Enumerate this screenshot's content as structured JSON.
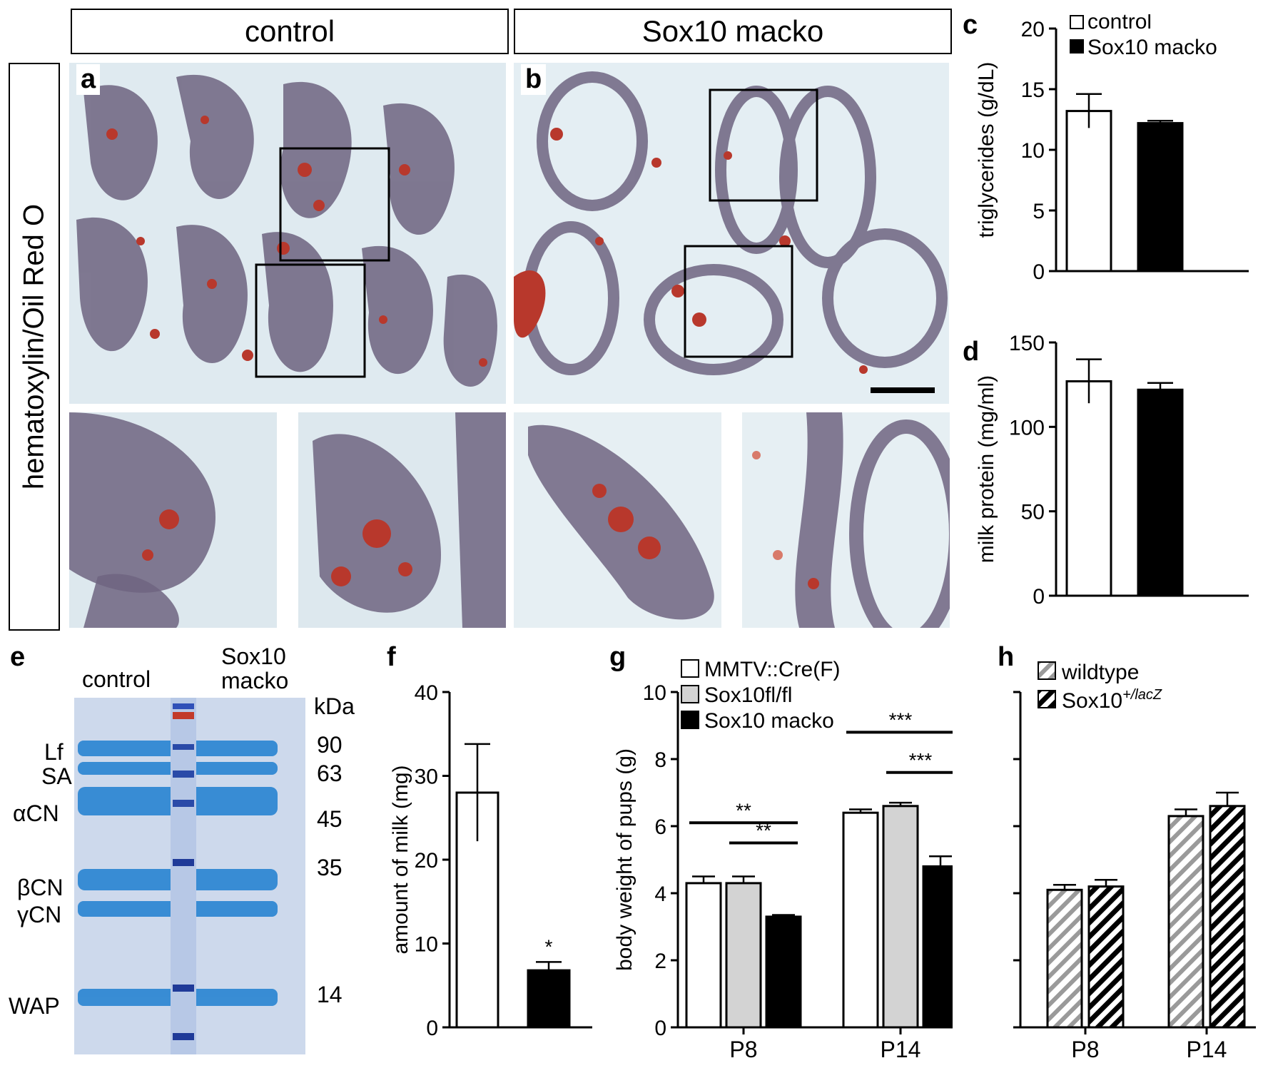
{
  "headers": {
    "control": "control",
    "macko": "Sox10 macko"
  },
  "side_label": "hematoxylin/Oil Red O",
  "panel_letters": {
    "a": "a",
    "b": "b",
    "c": "c",
    "d": "d",
    "e": "e",
    "f": "f",
    "g": "g",
    "h": "h"
  },
  "gel": {
    "control_label": "control",
    "macko_label_1": "Sox10",
    "macko_label_2": "macko",
    "kda_label": "kDa",
    "proteins": [
      "Lf",
      "SA",
      "αCN",
      "βCN",
      "γCN",
      "WAP"
    ],
    "markers": [
      "90",
      "63",
      "45",
      "35",
      "14"
    ]
  },
  "colors": {
    "control_fill": "#ffffff",
    "macko_fill": "#000000",
    "sox10flfl_fill": "#d3d3d3",
    "wildtype_hatch": "#9a9a9a",
    "lacz_hatch": "#000000",
    "tissue_purple": "#6e6480",
    "lipid_red": "#b8382c"
  },
  "chart_data": [
    {
      "panel": "c",
      "type": "bar",
      "categories": [
        "control",
        "Sox10 macko"
      ],
      "values": [
        13.2,
        12.2
      ],
      "errors": [
        1.4,
        0.2
      ],
      "fills": [
        "#ffffff",
        "#000000"
      ],
      "ylabel": "triglycerides (g/dL)",
      "ylim": [
        0,
        20
      ],
      "yticks": [
        0,
        5,
        10,
        15,
        20
      ],
      "legend": [
        "control",
        "Sox10 macko"
      ],
      "legend_position": "top-right"
    },
    {
      "panel": "d",
      "type": "bar",
      "categories": [
        "control",
        "Sox10 macko"
      ],
      "values": [
        127,
        122
      ],
      "errors": [
        13,
        4
      ],
      "fills": [
        "#ffffff",
        "#000000"
      ],
      "ylabel": "milk protein (mg/ml)",
      "ylim": [
        0,
        150
      ],
      "yticks": [
        0,
        50,
        100,
        150
      ]
    },
    {
      "panel": "f",
      "type": "bar",
      "categories": [
        "control",
        "Sox10 macko"
      ],
      "values": [
        28,
        6.8
      ],
      "errors": [
        5.8,
        1.0
      ],
      "fills": [
        "#ffffff",
        "#000000"
      ],
      "ylabel": "amount of milk (mg)",
      "ylim": [
        0,
        40
      ],
      "yticks": [
        0,
        10,
        20,
        30,
        40
      ],
      "significance": [
        "",
        "*"
      ]
    },
    {
      "panel": "g",
      "type": "bar",
      "categories": [
        "P8",
        "P14"
      ],
      "series": [
        {
          "name": "MMTV::Cre(F)",
          "values": [
            4.3,
            6.4
          ],
          "errors": [
            0.2,
            0.1
          ]
        },
        {
          "name": "Sox10fl/fl",
          "values": [
            4.3,
            6.6
          ],
          "errors": [
            0.2,
            0.1
          ]
        },
        {
          "name": "Sox10 macko",
          "values": [
            3.3,
            4.8
          ],
          "errors": [
            0.05,
            0.3
          ]
        }
      ],
      "ylabel": "body weight of pups (g)",
      "ylim": [
        0,
        10
      ],
      "yticks": [
        0,
        2,
        4,
        6,
        8,
        10
      ],
      "brackets": [
        {
          "label": "**",
          "y": 6.1,
          "from_series": 0,
          "to_series": 2,
          "category": 0
        },
        {
          "label": "**",
          "y": 5.5,
          "from_series": 1,
          "to_series": 2,
          "category": 0
        },
        {
          "label": "***",
          "y": 8.8,
          "from_series": 0,
          "to_series": 2,
          "category": 1
        },
        {
          "label": "***",
          "y": 7.6,
          "from_series": 1,
          "to_series": 2,
          "category": 1
        }
      ],
      "legend_position": "top-left"
    },
    {
      "panel": "h",
      "type": "bar",
      "categories": [
        "P8",
        "P14"
      ],
      "series": [
        {
          "name": "wildtype",
          "legend_main": "wildtype",
          "legend_sup": "",
          "values": [
            4.1,
            6.3
          ],
          "errors": [
            0.15,
            0.2
          ]
        },
        {
          "name": "Sox10+/lacZ",
          "legend_main": "Sox10",
          "legend_sup": "+/lacZ",
          "values": [
            4.2,
            6.6
          ],
          "errors": [
            0.2,
            0.4
          ]
        }
      ],
      "ylim": [
        0,
        10
      ],
      "yticks": [
        0,
        2,
        4,
        6,
        8,
        10
      ],
      "legend_position": "top-left"
    }
  ]
}
